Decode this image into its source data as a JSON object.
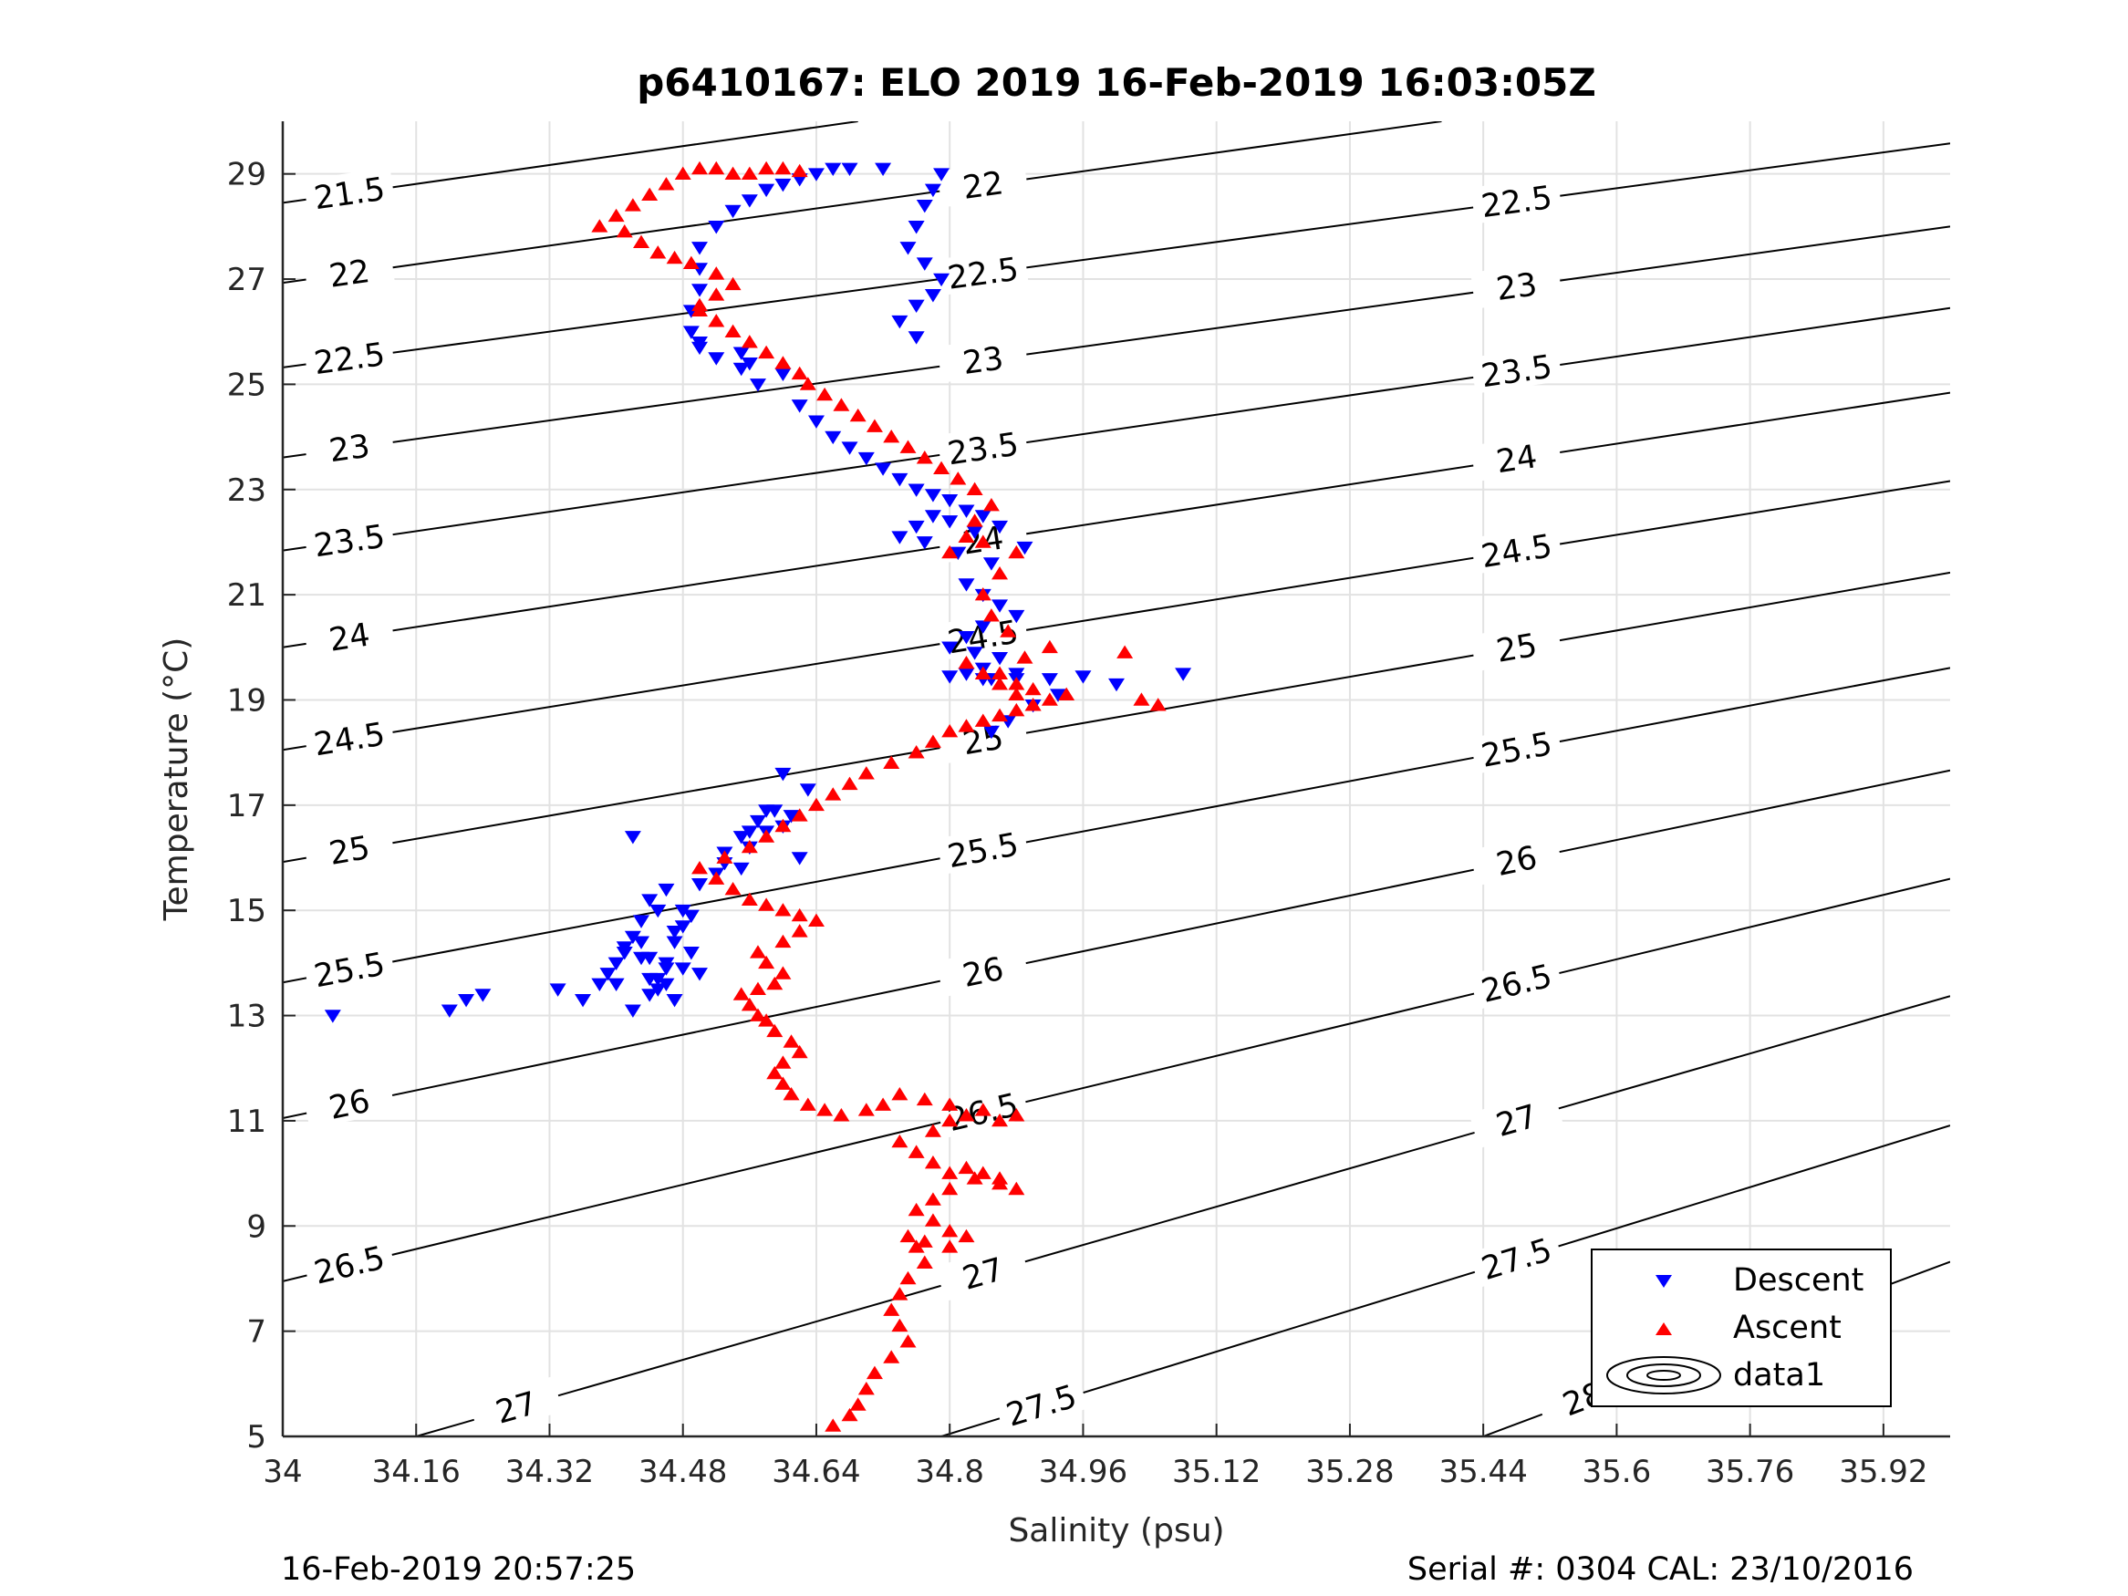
{
  "chart_data": {
    "type": "scatter",
    "title": "p6410167: ELO 2019 16-Feb-2019 16:03:05Z",
    "xlabel": "Salinity (psu)",
    "ylabel": "Temperature (°C)",
    "xlim": [
      34.0,
      36.0
    ],
    "ylim": [
      5,
      30
    ],
    "xticks": [
      34,
      34.16,
      34.32,
      34.48,
      34.64,
      34.8,
      34.96,
      35.12,
      35.28,
      35.44,
      35.6,
      35.76,
      35.92
    ],
    "xtick_labels": [
      "34",
      "34.16",
      "34.32",
      "34.48",
      "34.64",
      "34.8",
      "34.96",
      "35.12",
      "35.28",
      "35.44",
      "35.6",
      "35.76",
      "35.92"
    ],
    "yticks": [
      5,
      7,
      9,
      11,
      13,
      15,
      17,
      19,
      21,
      23,
      25,
      27,
      29
    ],
    "ytick_labels": [
      "5",
      "7",
      "9",
      "11",
      "13",
      "15",
      "17",
      "19",
      "21",
      "23",
      "25",
      "27",
      "29"
    ],
    "grid": true,
    "legend": {
      "position": "bottom-right",
      "entries": [
        "Descent",
        "Ascent",
        "data1"
      ]
    },
    "contours": {
      "levels": [
        21.5,
        22,
        22.5,
        23,
        23.5,
        24,
        24.5,
        25,
        25.5,
        26,
        26.5,
        27,
        27.5,
        28
      ],
      "label_texts": [
        "21.5",
        "22",
        "22.5",
        "23",
        "23.5",
        "24",
        "24.5",
        "25",
        "25.5",
        "26",
        "26.5",
        "27",
        "27.5",
        "28"
      ],
      "color": "#000000",
      "lines": [
        {
          "level": "21.5",
          "x0": 34.0,
          "y0": 28.45,
          "x1": 34.69,
          "y1": 30.0
        },
        {
          "level": "22",
          "x0": 34.0,
          "y0": 26.93,
          "x1": 35.39,
          "y1": 30.0
        },
        {
          "level": "22.5",
          "x0": 34.0,
          "y0": 25.32,
          "x1": 36.0,
          "y1": 29.58
        },
        {
          "level": "23",
          "x0": 34.0,
          "y0": 23.61,
          "x1": 36.0,
          "y1": 28.0
        },
        {
          "level": "23.5",
          "x0": 34.0,
          "y0": 21.84,
          "x1": 36.0,
          "y1": 26.45
        },
        {
          "level": "24",
          "x0": 34.0,
          "y0": 20.0,
          "x1": 36.0,
          "y1": 24.84
        },
        {
          "level": "24.5",
          "x0": 34.0,
          "y0": 18.05,
          "x1": 36.0,
          "y1": 23.16
        },
        {
          "level": "25",
          "x0": 34.0,
          "y0": 15.92,
          "x1": 36.0,
          "y1": 21.42
        },
        {
          "level": "25.5",
          "x0": 34.0,
          "y0": 13.63,
          "x1": 36.0,
          "y1": 19.61
        },
        {
          "level": "26",
          "x0": 34.0,
          "y0": 11.05,
          "x1": 36.0,
          "y1": 17.66
        },
        {
          "level": "26.5",
          "x0": 34.0,
          "y0": 7.95,
          "x1": 36.0,
          "y1": 15.6
        },
        {
          "level": "27",
          "x0": 34.16,
          "y0": 5.0,
          "x1": 36.0,
          "y1": 13.37
        },
        {
          "level": "27.5",
          "x0": 34.79,
          "y0": 5.0,
          "x1": 36.0,
          "y1": 10.91
        },
        {
          "level": "28",
          "x0": 35.44,
          "y0": 5.0,
          "x1": 36.0,
          "y1": 8.32
        }
      ]
    },
    "series": [
      {
        "name": "Descent",
        "marker": "triangle-down",
        "color": "#0000ff",
        "x": [
          34.06,
          34.2,
          34.22,
          34.24,
          34.33,
          34.36,
          34.38,
          34.39,
          34.4,
          34.41,
          34.42,
          34.43,
          34.44,
          34.45,
          34.46,
          34.47,
          34.48,
          34.49,
          34.5,
          34.42,
          34.44,
          34.46,
          34.48,
          34.43,
          34.45,
          34.47,
          34.49,
          34.41,
          34.43,
          34.45,
          34.47,
          34.44,
          34.46,
          34.48,
          34.42,
          34.5,
          34.52,
          34.46,
          34.44,
          34.4,
          34.53,
          34.55,
          34.57,
          34.59,
          34.61,
          34.53,
          34.55,
          34.56,
          34.58,
          34.6,
          34.62,
          34.63,
          34.6,
          34.58,
          34.56,
          34.55,
          34.57,
          34.6,
          34.62,
          34.64,
          34.66,
          34.68,
          34.7,
          34.72,
          34.74,
          34.76,
          34.78,
          34.8,
          34.82,
          34.84,
          34.86,
          34.83,
          34.8,
          34.78,
          34.76,
          34.74,
          34.77,
          34.81,
          34.85,
          34.89,
          34.82,
          34.84,
          34.86,
          34.88,
          34.84,
          34.82,
          34.8,
          34.83,
          34.86,
          34.84,
          34.82,
          34.85,
          34.88,
          34.8,
          34.84,
          34.88,
          34.92,
          34.96,
          35.0,
          34.93,
          34.9,
          34.87,
          34.85,
          35.08,
          34.79,
          34.78,
          34.77,
          34.76,
          34.75,
          34.77,
          34.79,
          34.78,
          34.76,
          34.74,
          34.76,
          34.72,
          34.68,
          34.66,
          34.64,
          34.62,
          34.6,
          34.58,
          34.56,
          34.54,
          34.52,
          34.5,
          34.5,
          34.5,
          34.49,
          34.49,
          34.5,
          34.52,
          34.5,
          34.55,
          34.56
        ],
        "y": [
          13.0,
          13.1,
          13.3,
          13.4,
          13.5,
          13.3,
          13.6,
          13.8,
          14.0,
          14.3,
          14.5,
          14.1,
          13.7,
          13.5,
          13.9,
          14.4,
          14.7,
          14.2,
          13.8,
          13.1,
          13.4,
          13.6,
          13.9,
          14.8,
          15.0,
          14.6,
          14.9,
          14.2,
          14.4,
          13.7,
          13.3,
          15.2,
          15.4,
          15.0,
          16.4,
          15.5,
          15.7,
          14.0,
          14.1,
          13.6,
          16.1,
          16.4,
          16.7,
          16.9,
          16.8,
          15.9,
          15.8,
          16.2,
          16.5,
          16.6,
          16.0,
          17.3,
          17.6,
          16.9,
          16.5,
          25.3,
          25.0,
          25.2,
          24.6,
          24.3,
          24.0,
          23.8,
          23.6,
          23.4,
          23.2,
          23.0,
          22.9,
          22.8,
          22.6,
          22.5,
          22.3,
          22.2,
          22.4,
          22.5,
          22.3,
          22.1,
          22.0,
          21.8,
          21.6,
          21.9,
          21.2,
          21.0,
          20.8,
          20.6,
          20.4,
          20.2,
          20.0,
          19.9,
          19.8,
          19.6,
          19.5,
          19.4,
          19.4,
          19.45,
          19.4,
          19.5,
          19.4,
          19.45,
          19.3,
          19.1,
          18.9,
          18.6,
          18.4,
          19.5,
          29.0,
          28.7,
          28.4,
          28.0,
          27.6,
          27.3,
          27.0,
          26.7,
          26.5,
          26.2,
          25.9,
          29.1,
          29.1,
          29.1,
          29.0,
          28.9,
          28.8,
          28.7,
          28.5,
          28.3,
          28.0,
          27.6,
          27.2,
          26.8,
          26.4,
          26.0,
          25.7,
          25.5,
          25.8,
          25.6,
          25.4
        ]
      },
      {
        "name": "Ascent",
        "marker": "triangle-up",
        "color": "#ff0000",
        "x": [
          34.66,
          34.68,
          34.69,
          34.7,
          34.71,
          34.73,
          34.75,
          34.74,
          34.73,
          34.74,
          34.75,
          34.77,
          34.76,
          34.75,
          34.77,
          34.8,
          34.82,
          34.8,
          34.78,
          34.76,
          34.78,
          34.8,
          34.83,
          34.86,
          34.88,
          34.82,
          34.84,
          34.86,
          34.8,
          34.78,
          34.76,
          34.74,
          34.78,
          34.8,
          34.82,
          34.84,
          34.86,
          34.88,
          34.8,
          34.77,
          34.74,
          34.72,
          34.7,
          34.67,
          34.65,
          34.63,
          34.61,
          34.6,
          34.59,
          34.6,
          34.62,
          34.61,
          34.59,
          34.58,
          34.57,
          34.56,
          34.55,
          34.57,
          34.59,
          34.6,
          34.58,
          34.57,
          34.6,
          34.62,
          34.64,
          34.62,
          34.6,
          34.58,
          34.56,
          34.54,
          34.52,
          34.5,
          34.53,
          34.56,
          34.58,
          34.6,
          34.62,
          34.64,
          34.66,
          34.68,
          34.7,
          34.73,
          34.76,
          34.78,
          34.8,
          34.82,
          34.84,
          34.86,
          34.88,
          34.9,
          34.92,
          34.94,
          34.9,
          34.88,
          34.86,
          34.89,
          34.92,
          35.01,
          35.03,
          35.05,
          34.9,
          34.88,
          34.86,
          34.84,
          34.82,
          34.87,
          34.85,
          34.84,
          34.86,
          34.88,
          34.84,
          34.82,
          34.8,
          34.83,
          34.85,
          34.83,
          34.81,
          34.79,
          34.77,
          34.75,
          34.73,
          34.71,
          34.69,
          34.67,
          34.65,
          34.63,
          34.62,
          34.6,
          34.58,
          34.56,
          34.54,
          34.52,
          34.5,
          34.5,
          34.52,
          34.54,
          34.52,
          34.49,
          34.47,
          34.45,
          34.43,
          34.41,
          34.38,
          34.4,
          34.42,
          34.44,
          34.46,
          34.48,
          34.5,
          34.52,
          34.54,
          34.56,
          34.58,
          34.6,
          34.62
        ],
        "y": [
          5.2,
          5.4,
          5.6,
          5.9,
          6.2,
          6.5,
          6.8,
          7.1,
          7.4,
          7.7,
          8.0,
          8.3,
          8.6,
          8.8,
          8.7,
          8.6,
          8.8,
          8.9,
          9.1,
          9.3,
          9.5,
          9.7,
          9.9,
          9.8,
          9.7,
          10.1,
          10.0,
          9.9,
          10.0,
          10.2,
          10.4,
          10.6,
          10.8,
          11.0,
          11.1,
          11.2,
          11.0,
          11.1,
          11.3,
          11.4,
          11.5,
          11.3,
          11.2,
          11.1,
          11.2,
          11.3,
          11.5,
          11.7,
          11.9,
          12.1,
          12.3,
          12.5,
          12.7,
          12.9,
          13.0,
          13.2,
          13.4,
          13.5,
          13.6,
          13.8,
          14.0,
          14.2,
          14.4,
          14.6,
          14.8,
          14.9,
          15.0,
          15.1,
          15.2,
          15.4,
          15.6,
          15.8,
          16.0,
          16.2,
          16.4,
          16.6,
          16.8,
          17.0,
          17.2,
          17.4,
          17.6,
          17.8,
          18.0,
          18.2,
          18.4,
          18.5,
          18.6,
          18.7,
          18.8,
          18.9,
          19.0,
          19.1,
          19.2,
          19.3,
          19.5,
          19.8,
          20.0,
          19.9,
          19.0,
          18.9,
          18.9,
          19.1,
          19.3,
          19.5,
          19.7,
          20.3,
          20.6,
          21.0,
          21.4,
          21.8,
          22.0,
          22.1,
          21.8,
          22.4,
          22.7,
          23.0,
          23.2,
          23.4,
          23.6,
          23.8,
          24.0,
          24.2,
          24.4,
          24.6,
          24.8,
          25.0,
          25.2,
          25.4,
          25.6,
          25.8,
          26.0,
          26.2,
          26.4,
          26.5,
          26.7,
          26.9,
          27.1,
          27.3,
          27.4,
          27.5,
          27.7,
          27.9,
          28.0,
          28.2,
          28.4,
          28.6,
          28.8,
          29.0,
          29.1,
          29.1,
          29.0,
          29.0,
          29.1,
          29.1,
          29.05
        ]
      }
    ]
  },
  "footer": {
    "left": "16-Feb-2019 20:57:25",
    "right": "Serial #: 0304  CAL: 23/10/2016"
  }
}
